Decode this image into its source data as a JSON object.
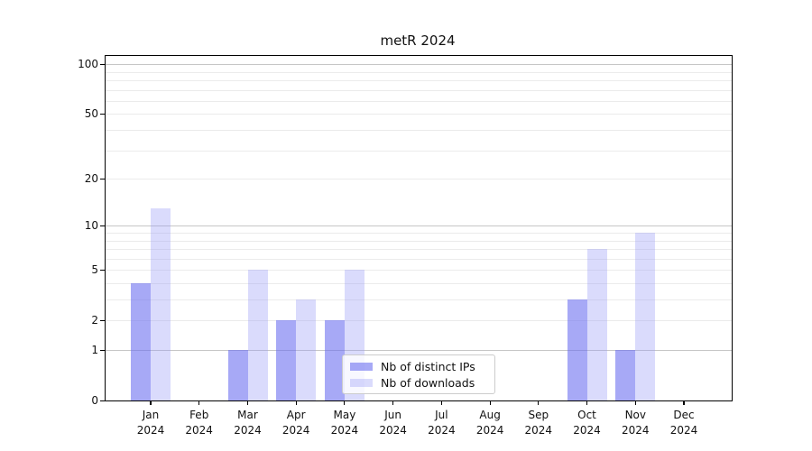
{
  "chart_data": {
    "type": "bar",
    "title": "metR 2024",
    "categories": [
      "Jan 2024",
      "Feb 2024",
      "Mar 2024",
      "Apr 2024",
      "May 2024",
      "Jun 2024",
      "Jul 2024",
      "Aug 2024",
      "Sep 2024",
      "Oct 2024",
      "Nov 2024",
      "Dec 2024"
    ],
    "series": [
      {
        "name": "Nb of distinct IPs",
        "color": "rgba(108,111,240,0.6)",
        "values": [
          4,
          0,
          1,
          2,
          2,
          0,
          0,
          0,
          0,
          3,
          1,
          0
        ]
      },
      {
        "name": "Nb of downloads",
        "color": "rgba(148,153,245,0.35)",
        "values": [
          13,
          0,
          5,
          3,
          5,
          0,
          0,
          0,
          0,
          7,
          9,
          0
        ]
      }
    ],
    "xlabel": "",
    "ylabel": "",
    "y_scale": "log1p",
    "ylim": [
      0,
      112
    ],
    "y_ticks": [
      0,
      1,
      2,
      5,
      10,
      20,
      50,
      100
    ],
    "major_gridlines": [
      1,
      10,
      100
    ],
    "minor_gridlines": [
      2,
      3,
      4,
      5,
      6,
      7,
      8,
      9,
      20,
      30,
      40,
      50,
      60,
      70,
      80,
      90
    ],
    "grid": true,
    "legend_position": "lower center, inside plot"
  }
}
